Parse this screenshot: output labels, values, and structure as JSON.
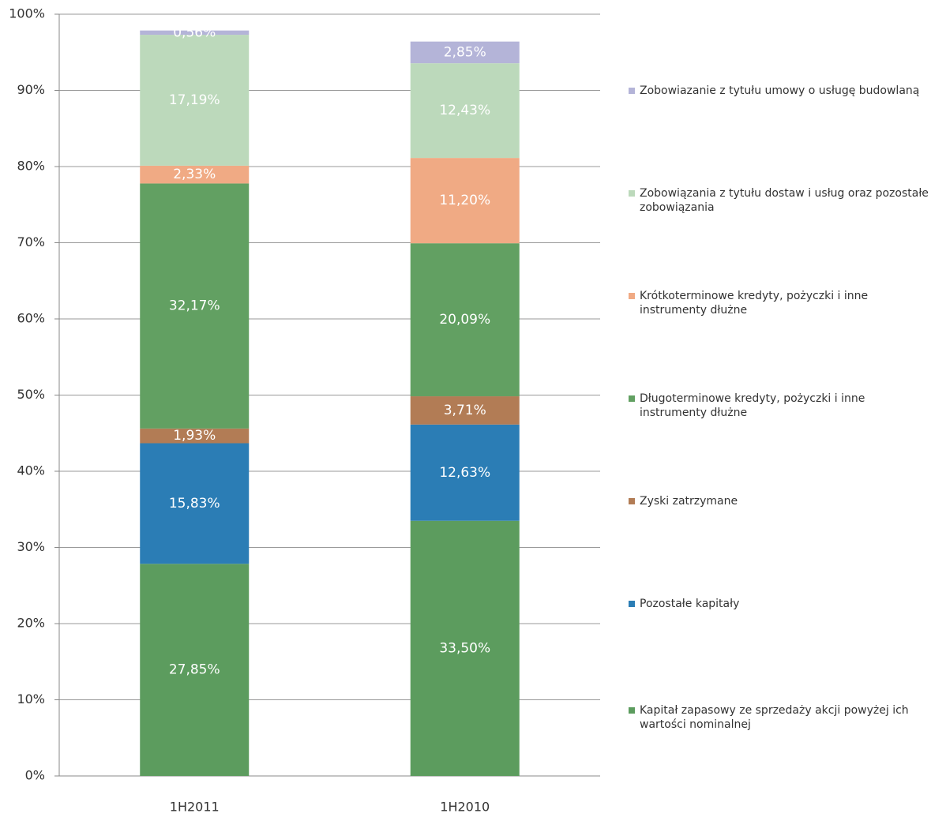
{
  "chart_data": {
    "type": "stacked_bar",
    "categories": [
      "1H2011",
      "1H2010"
    ],
    "series": [
      {
        "name": "Kapitał zapasowy ze sprzedaży akcji powyżej ich wartości nominalnej",
        "color": "#5c9c5e",
        "values": [
          27.85,
          33.5
        ],
        "value_labels": [
          "27,85%",
          "33,50%"
        ]
      },
      {
        "name": "Pozostałe kapitały",
        "color": "#2b7db5",
        "values": [
          15.83,
          12.63
        ],
        "value_labels": [
          "15,83%",
          "12,63%"
        ]
      },
      {
        "name": "Zyski zatrzymane",
        "color": "#b27c55",
        "values": [
          1.93,
          3.71
        ],
        "value_labels": [
          "1,93%",
          "3,71%"
        ]
      },
      {
        "name": "Długoterminowe kredyty, pożyczki i inne instrumenty dłużne",
        "color": "#62a062",
        "values": [
          32.17,
          20.09
        ],
        "value_labels": [
          "32,17%",
          "20,09%"
        ]
      },
      {
        "name": "Krótkoterminowe kredyty, pożyczki i inne instrumenty dłużne",
        "color": "#f0aa84",
        "values": [
          2.33,
          11.2
        ],
        "value_labels": [
          "2,33%",
          "11,20%"
        ]
      },
      {
        "name": "Zobowiązania z tytułu dostaw i usług oraz pozostałe zobowiązania",
        "color": "#bcd9bb",
        "values": [
          17.19,
          12.43
        ],
        "value_labels": [
          "17,19%",
          "12,43%"
        ]
      },
      {
        "name": "Zobowiazanie z tytułu umowy o usługę budowlaną",
        "color": "#b4b4d8",
        "values": [
          0.56,
          2.85
        ],
        "value_labels": [
          "0,56%",
          "2,85%"
        ]
      }
    ],
    "ylim": [
      0,
      100
    ],
    "yticks": [
      {
        "value": 0,
        "label": "0%"
      },
      {
        "value": 10,
        "label": "10%"
      },
      {
        "value": 20,
        "label": "20%"
      },
      {
        "value": 30,
        "label": "30%"
      },
      {
        "value": 40,
        "label": "40%"
      },
      {
        "value": 50,
        "label": "50%"
      },
      {
        "value": 60,
        "label": "60%"
      },
      {
        "value": 70,
        "label": "70%"
      },
      {
        "value": 80,
        "label": "80%"
      },
      {
        "value": 90,
        "label": "90%"
      },
      {
        "value": 100,
        "label": "100%"
      }
    ],
    "grid": true
  }
}
